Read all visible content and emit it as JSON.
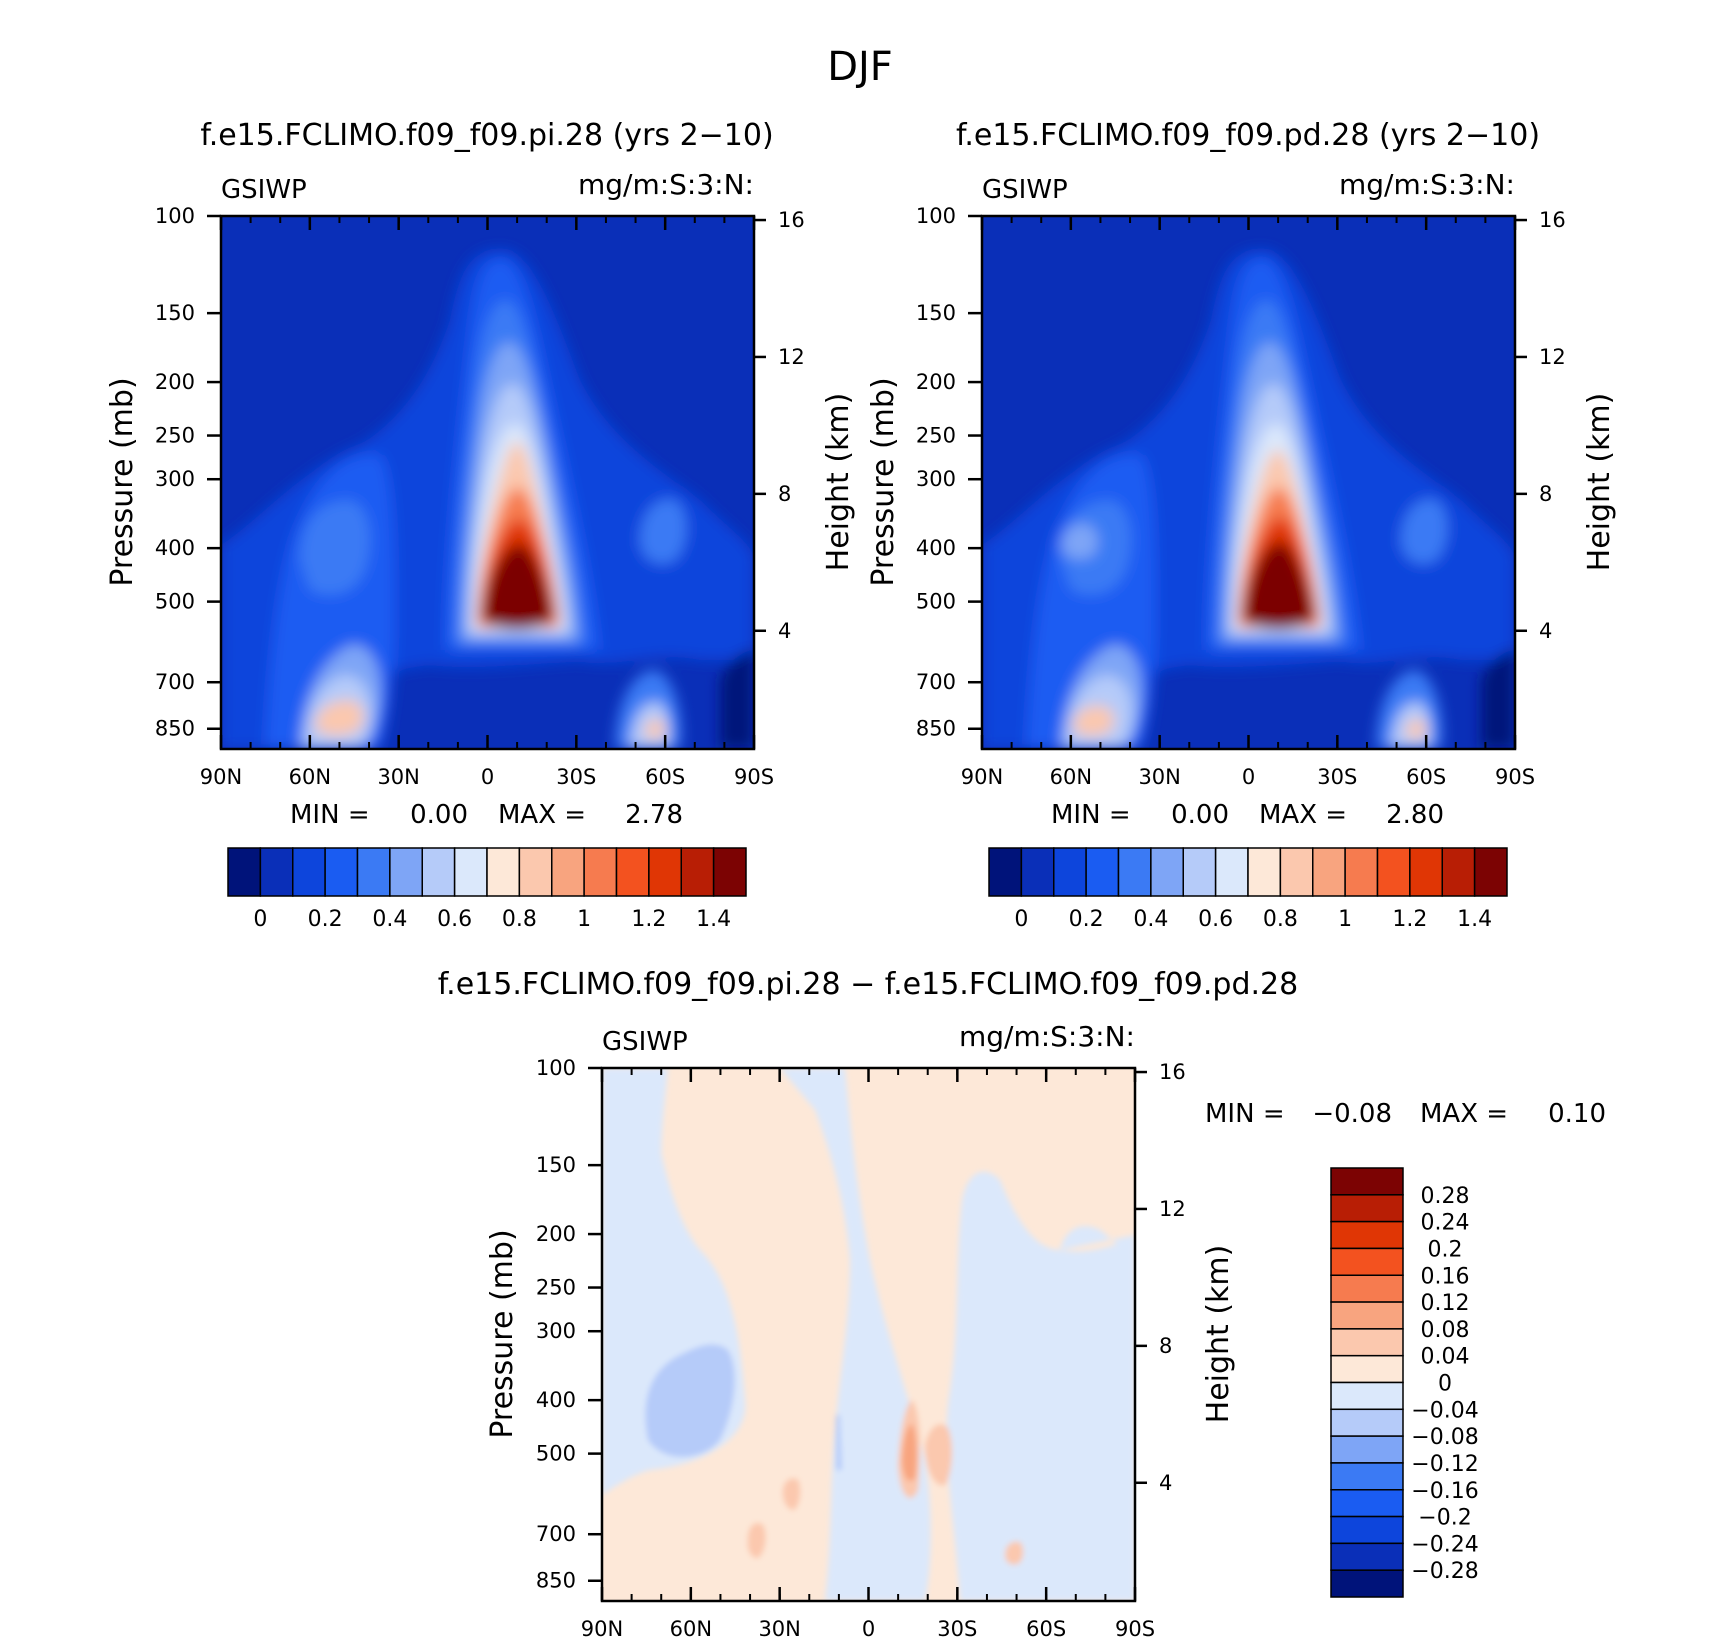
{
  "figure": {
    "title": "DJF"
  },
  "colors": {
    "abs_levels": [
      "#00137a",
      "#0a2fb8",
      "#0d45dc",
      "#1a5cf2",
      "#3b7af4",
      "#7ea5f6",
      "#b5cbf9",
      "#dbe8fb",
      "#fde8d8",
      "#fbc8ae",
      "#f8a47f",
      "#f67b4f",
      "#f3521f",
      "#e03605",
      "#b81e05",
      "#7c0303"
    ],
    "diff_levels": [
      "#7c0303",
      "#b81e05",
      "#e03605",
      "#f3521f",
      "#f67b4f",
      "#f8a47f",
      "#fbc8ae",
      "#fde8d8",
      "#dbe8fb",
      "#b5cbf9",
      "#7ea5f6",
      "#3b7af4",
      "#1a5cf2",
      "#0d45dc",
      "#0a2fb8",
      "#00137a"
    ]
  },
  "chart_data": [
    {
      "type": "heatmap",
      "title": "f.e15.FCLIMO.f09_f09.pi.28 (yrs 2−10)",
      "left_label": "GSIWP",
      "right_label": "mg/m:S:3:N:",
      "ylabel": "Pressure (mb)",
      "y2label": "Height (km)",
      "xticks": [
        "90N",
        "60N",
        "30N",
        "0",
        "30S",
        "60S",
        "90S"
      ],
      "yticks": [
        "100",
        "150",
        "200",
        "250",
        "300",
        "400",
        "500",
        "700",
        "850"
      ],
      "y2ticks": [
        "16",
        "12",
        "8",
        "4"
      ],
      "stats": {
        "min_label": "MIN =",
        "min": "0.00",
        "max_label": "MAX =",
        "max": "2.78"
      },
      "colorbar_labels": [
        "0",
        "0.2",
        "0.4",
        "0.6",
        "0.8",
        "1",
        "1.2",
        "1.4"
      ],
      "max_value": 2.78
    },
    {
      "type": "heatmap",
      "title": "f.e15.FCLIMO.f09_f09.pd.28 (yrs 2−10)",
      "left_label": "GSIWP",
      "right_label": "mg/m:S:3:N:",
      "ylabel": "Pressure (mb)",
      "y2label": "Height (km)",
      "xticks": [
        "90N",
        "60N",
        "30N",
        "0",
        "30S",
        "60S",
        "90S"
      ],
      "yticks": [
        "100",
        "150",
        "200",
        "250",
        "300",
        "400",
        "500",
        "700",
        "850"
      ],
      "y2ticks": [
        "16",
        "12",
        "8",
        "4"
      ],
      "stats": {
        "min_label": "MIN =",
        "min": "0.00",
        "max_label": "MAX =",
        "max": "2.80"
      },
      "colorbar_labels": [
        "0",
        "0.2",
        "0.4",
        "0.6",
        "0.8",
        "1",
        "1.2",
        "1.4"
      ],
      "max_value": 2.8
    },
    {
      "type": "heatmap",
      "title": "f.e15.FCLIMO.f09_f09.pi.28 − f.e15.FCLIMO.f09_f09.pd.28",
      "left_label": "GSIWP",
      "right_label": "mg/m:S:3:N:",
      "ylabel": "Pressure (mb)",
      "y2label": "Height (km)",
      "xticks": [
        "90N",
        "60N",
        "30N",
        "0",
        "30S",
        "60S",
        "90S"
      ],
      "yticks": [
        "100",
        "150",
        "200",
        "250",
        "300",
        "400",
        "500",
        "700",
        "850"
      ],
      "y2ticks": [
        "16",
        "12",
        "8",
        "4"
      ],
      "stats": {
        "min_label": "MIN =",
        "min": "−0.08",
        "max_label": "MAX =",
        "max": "0.10"
      },
      "colorbar_labels": [
        "0.28",
        "0.24",
        "0.2",
        "0.16",
        "0.12",
        "0.08",
        "0.04",
        "0",
        "−0.04",
        "−0.08",
        "−0.12",
        "−0.16",
        "−0.2",
        "−0.24",
        "−0.28"
      ]
    }
  ]
}
